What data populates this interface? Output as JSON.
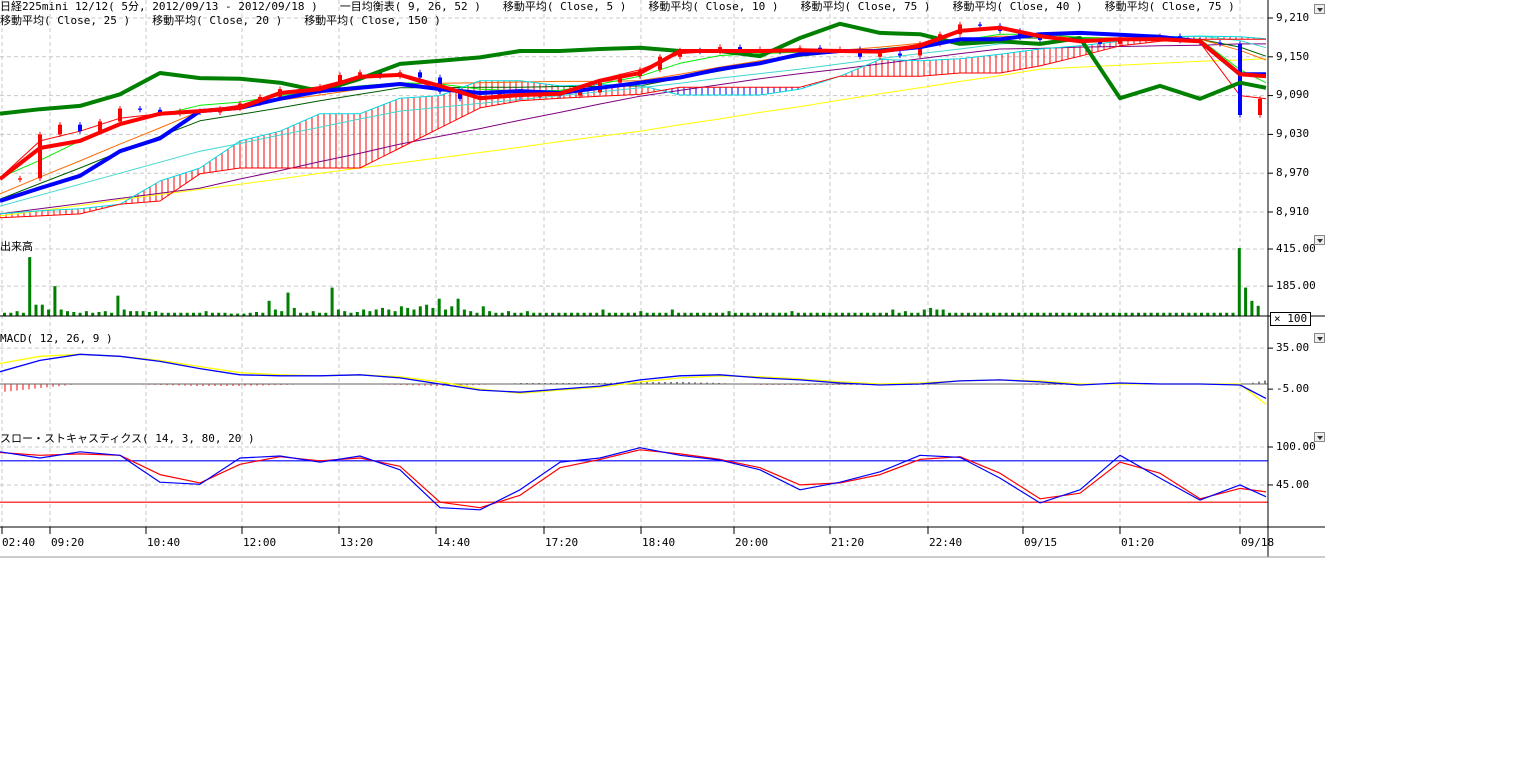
{
  "header": {
    "line1": [
      "日経225mini 12/12( 5分, 2012/09/13 - 2012/09/18 )",
      "一目均衡表( 9, 26, 52 )",
      "移動平均( Close, 5 )",
      "移動平均( Close, 10 )",
      "移動平均( Close, 75 )",
      "移動平均( Close, 40 )",
      "移動平均( Close, 75 )"
    ],
    "line2": [
      "移動平均( Close, 25 )",
      "移動平均( Close, 20 )",
      "移動平均( Close, 150 )"
    ]
  },
  "panels": {
    "volume_label": "出来高",
    "volume_multiplier": "× 100",
    "macd_label": "MACD( 12, 26, 9 )",
    "stoch_label": "スロー・ストキャスティクス( 14, 3, 80, 20 )"
  },
  "axes": {
    "price_ticks": [
      "9,210",
      "9,150",
      "9,090",
      "9,030",
      "8,970",
      "8,910"
    ],
    "volume_ticks": [
      "415.00",
      "185.00"
    ],
    "macd_ticks": [
      "35.00",
      "-5.00"
    ],
    "stoch_ticks": [
      "100.00",
      "45.00"
    ],
    "time_labels": [
      "02:40",
      "09:20",
      "10:40",
      "12:00",
      "13:20",
      "14:40",
      "17:20",
      "18:40",
      "20:00",
      "21:20",
      "22:40",
      "09/15",
      "01:20",
      "09/18"
    ]
  },
  "chart_data": [
    {
      "type": "line",
      "panel": "price",
      "ylim": [
        8880,
        9225
      ],
      "grid": true,
      "series": [
        {
          "key": "tenkan",
          "color": "#ff0000",
          "values": [
            8961,
            9009,
            9020,
            9046,
            9062,
            9066,
            9071,
            9094,
            9100,
            9119,
            9122,
            9105,
            9086,
            9091,
            9093,
            9113,
            9125,
            9159,
            9159,
            9159,
            9160,
            9159,
            9158,
            9167,
            9190,
            9195,
            9182,
            9174,
            9177,
            9177,
            9174,
            9123,
            9120
          ]
        },
        {
          "key": "kijun",
          "color": "#0000ff",
          "values": [
            8927,
            8947,
            8966,
            9004,
            9024,
            9066,
            9071,
            9085,
            9097,
            9102,
            9108,
            9100,
            9094,
            9097,
            9094,
            9102,
            9110,
            9118,
            9131,
            9140,
            9154,
            9159,
            9159,
            9165,
            9177,
            9177,
            9185,
            9187,
            9184,
            9181,
            9174,
            9123,
            9123
          ]
        },
        {
          "key": "chikou",
          "color": "#008000",
          "values": [
            9062,
            9069,
            9074,
            9092,
            9125,
            9117,
            9116,
            9110,
            9097,
            9116,
            9139,
            9144,
            9149,
            9159,
            9159,
            9162,
            9164,
            9159,
            9159,
            9151,
            9179,
            9201,
            9187,
            9185,
            9170,
            9174,
            9170,
            9179,
            9086,
            9105,
            9085,
            9110,
            9102
          ]
        },
        {
          "key": "spanA",
          "color": "#00d8e0",
          "values": [
            8907,
            8912,
            8915,
            8922,
            8958,
            8978,
            9020,
            9035,
            9062,
            9062,
            9086,
            9090,
            9113,
            9113,
            9105,
            9107,
            9106,
            9091,
            9091,
            9091,
            9100,
            9120,
            9146,
            9144,
            9147,
            9154,
            9162,
            9167,
            9174,
            9181,
            9182,
            9181,
            9178
          ]
        },
        {
          "key": "spanB",
          "color": "#ff0000",
          "values": [
            8901,
            8904,
            8907,
            8922,
            8927,
            8969,
            8978,
            8978,
            8978,
            8978,
            9009,
            9040,
            9071,
            9082,
            9086,
            9089,
            9092,
            9103,
            9103,
            9103,
            9103,
            9120,
            9120,
            9120,
            9125,
            9125,
            9136,
            9151,
            9167,
            9174,
            9177,
            9177,
            9177
          ]
        },
        {
          "key": "ma150",
          "color": "#ffff00",
          "values": [
            8904,
            8912,
            8920,
            8929,
            8937,
            8945,
            8953,
            8961,
            8970,
            8978,
            8986,
            8994,
            9002,
            9010,
            9019,
            9027,
            9035,
            9045,
            9054,
            9064,
            9073,
            9083,
            9093,
            9102,
            9112,
            9121,
            9131,
            9134,
            9137,
            9140,
            9143,
            9145,
            9147
          ]
        },
        {
          "key": "ma75",
          "color": "#800080",
          "values": [
            8907,
            8915,
            8923,
            8931,
            8939,
            8947,
            8961,
            8974,
            8988,
            9001,
            9015,
            9027,
            9039,
            9052,
            9064,
            9077,
            9089,
            9098,
            9107,
            9116,
            9124,
            9131,
            9139,
            9147,
            9155,
            9162,
            9163,
            9165,
            9166,
            9167,
            9168,
            9170,
            9170
          ]
        },
        {
          "key": "ma40",
          "color": "#40d8d0",
          "values": [
            8919,
            8936,
            8953,
            8970,
            8987,
            9004,
            9016,
            9029,
            9041,
            9054,
            9066,
            9072,
            9078,
            9084,
            9090,
            9096,
            9102,
            9109,
            9117,
            9124,
            9131,
            9139,
            9147,
            9155,
            9162,
            9170,
            9172,
            9175,
            9177,
            9180,
            9182,
            9175,
            9164
          ]
        },
        {
          "key": "ma25",
          "color": "#005a00",
          "values": [
            8930,
            8954,
            8978,
            9003,
            9027,
            9051,
            9061,
            9071,
            9082,
            9092,
            9102,
            9102,
            9103,
            9103,
            9104,
            9104,
            9105,
            9117,
            9128,
            9140,
            9151,
            9157,
            9162,
            9168,
            9173,
            9179,
            9179,
            9178,
            9178,
            9177,
            9177,
            9165,
            9151
          ]
        },
        {
          "key": "ma20",
          "color": "#ff6a00",
          "values": [
            8938,
            8964,
            8989,
            9015,
            9040,
            9066,
            9074,
            9083,
            9091,
            9100,
            9108,
            9109,
            9110,
            9111,
            9112,
            9112,
            9113,
            9123,
            9134,
            9144,
            9154,
            9160,
            9165,
            9171,
            9176,
            9182,
            9181,
            9180,
            9179,
            9178,
            9177,
            9160,
            9145
          ]
        },
        {
          "key": "ma10",
          "color": "#00ee00",
          "values": [
            8963,
            8990,
            9020,
            9045,
            9060,
            9075,
            9080,
            9090,
            9098,
            9105,
            9110,
            9108,
            9100,
            9097,
            9098,
            9108,
            9120,
            9140,
            9152,
            9155,
            9157,
            9158,
            9160,
            9165,
            9175,
            9185,
            9185,
            9180,
            9178,
            9178,
            9177,
            9130,
            9110
          ]
        },
        {
          "key": "ma5",
          "color": "#ff0000",
          "values": [
            8963,
            9020,
            9035,
            9055,
            9062,
            9066,
            9075,
            9095,
            9104,
            9120,
            9120,
            9100,
            9088,
            9091,
            9095,
            9115,
            9130,
            9155,
            9159,
            9160,
            9160,
            9157,
            9156,
            9170,
            9192,
            9193,
            9180,
            9175,
            9178,
            9177,
            9172,
            9090,
            9085
          ]
        }
      ],
      "candle_closes": [
        8960,
        8962,
        9030,
        9045,
        9035,
        9050,
        9070,
        9068,
        9062,
        9066,
        9064,
        9070,
        9078,
        9088,
        9100,
        9096,
        9104,
        9122,
        9126,
        9120,
        9126,
        9118,
        9096,
        9085,
        9090,
        9094,
        9088,
        9092,
        9090,
        9095,
        9110,
        9120,
        9130,
        9150,
        9160,
        9158,
        9165,
        9160,
        9162,
        9158,
        9164,
        9160,
        9162,
        9150,
        9155,
        9152,
        9170,
        9185,
        9200,
        9198,
        9190,
        9180,
        9176,
        9178,
        9175,
        9170,
        9180,
        9178,
        9182,
        9175,
        9172,
        9170,
        9060,
        9085
      ],
      "up_color": "#ff0000",
      "down_color": "#0000ff"
    },
    {
      "type": "bar",
      "panel": "volume",
      "ylim": [
        0,
        415
      ],
      "color": "#008000",
      "values": [
        20,
        20,
        30,
        20,
        365,
        70,
        70,
        40,
        185,
        40,
        30,
        25,
        20,
        30,
        20,
        25,
        30,
        20,
        126,
        40,
        30,
        30,
        30,
        25,
        30,
        20,
        20,
        20,
        20,
        20,
        20,
        20,
        30,
        20,
        20,
        20,
        15,
        15,
        15,
        20,
        25,
        20,
        94,
        40,
        30,
        145,
        50,
        20,
        20,
        30,
        20,
        20,
        176,
        40,
        30,
        20,
        25,
        40,
        30,
        40,
        50,
        40,
        30,
        60,
        50,
        40,
        60,
        70,
        50,
        107,
        40,
        60,
        107,
        40,
        30,
        20,
        60,
        30,
        20,
        20,
        30,
        20,
        20,
        30,
        20,
        20,
        20,
        20,
        20,
        20,
        20,
        20,
        20,
        20,
        20,
        40,
        20,
        20,
        20,
        20,
        20,
        30,
        20,
        20,
        20,
        20,
        40,
        20,
        20,
        20,
        20,
        20,
        20,
        20,
        20,
        30,
        20,
        20,
        20,
        20,
        20,
        20,
        20,
        20,
        20,
        30,
        20,
        20,
        20,
        20,
        20,
        20,
        20,
        20,
        20,
        20,
        20,
        20,
        20,
        20,
        20,
        40,
        20,
        30,
        20,
        20,
        40,
        50,
        40,
        40,
        20,
        20,
        20,
        20,
        20,
        20,
        20,
        20,
        20,
        20,
        20,
        20,
        20,
        20,
        20,
        20,
        20,
        20,
        20,
        20,
        20,
        20,
        20,
        20,
        20,
        20,
        20,
        20,
        20,
        20,
        20,
        20,
        20,
        20,
        20,
        20,
        20,
        20,
        20,
        20,
        20,
        20,
        20,
        20,
        20,
        20,
        421,
        176,
        94,
        63
      ]
    },
    {
      "type": "line",
      "panel": "macd",
      "ylim": [
        -30,
        40
      ],
      "series": [
        {
          "key": "macd",
          "color": "#0000ff",
          "values": [
            12,
            23,
            29,
            27,
            22,
            15,
            9,
            8,
            8,
            9,
            6,
            0,
            -6,
            -8,
            -5,
            -2,
            4,
            8,
            9,
            6,
            4,
            1,
            -1,
            0,
            3,
            4,
            2,
            -1,
            1,
            0,
            0,
            -1,
            -14
          ]
        },
        {
          "key": "signal",
          "color": "#ffff00",
          "values": [
            20,
            27,
            29,
            27,
            23,
            17,
            11,
            9,
            8,
            9,
            7,
            2,
            -5,
            -9,
            -6,
            -3,
            2,
            6,
            8,
            7,
            5,
            2,
            0,
            1,
            3,
            4,
            3,
            0,
            0,
            0,
            0,
            0,
            -20
          ]
        }
      ]
    },
    {
      "type": "line",
      "panel": "stochastic",
      "ylim": [
        0,
        100
      ],
      "levels": [
        {
          "value": 80,
          "color": "#0000ff"
        },
        {
          "value": 20,
          "color": "#ff0000"
        }
      ],
      "series": [
        {
          "key": "k",
          "color": "#0000ff",
          "values": [
            93,
            84,
            93,
            88,
            49,
            46,
            84,
            87,
            78,
            87,
            67,
            12,
            9,
            38,
            78,
            84,
            99,
            88,
            81,
            67,
            38,
            49,
            64,
            88,
            85,
            55,
            19,
            38,
            88,
            55,
            23,
            45,
            28
          ]
        },
        {
          "key": "d",
          "color": "#ff0000",
          "values": [
            92,
            88,
            90,
            88,
            60,
            48,
            75,
            86,
            80,
            84,
            72,
            20,
            12,
            30,
            70,
            82,
            96,
            90,
            82,
            70,
            45,
            48,
            60,
            82,
            86,
            62,
            25,
            33,
            78,
            62,
            25,
            40,
            35
          ]
        }
      ]
    }
  ]
}
